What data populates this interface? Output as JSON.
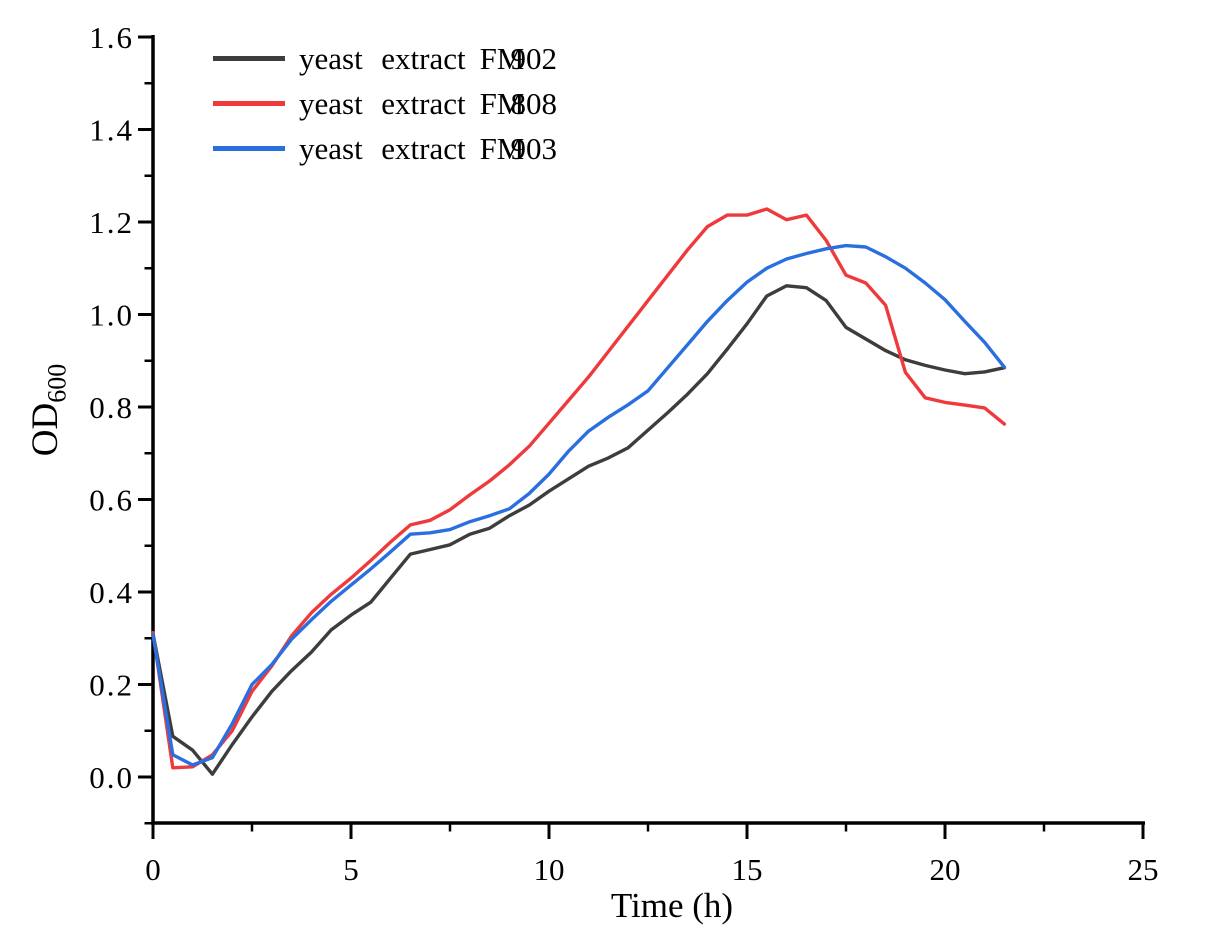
{
  "page": {
    "background": "#ffffff",
    "axis_color": "#000000",
    "text_color": "#000000"
  },
  "chart_data": {
    "type": "line",
    "title": "",
    "xlabel": "Time (h)",
    "ylabel": "OD",
    "ylabel_subscript": "600",
    "xlim": [
      0,
      25
    ],
    "ylim": [
      0,
      1.6
    ],
    "grid": false,
    "legend_position": "top-left-inside",
    "x_tick_labels": [
      "0",
      "5",
      "10",
      "15",
      "20",
      "25"
    ],
    "x_tick_values": [
      0,
      5,
      10,
      15,
      20,
      25
    ],
    "x_minor_ticks": [
      2.5,
      7.5,
      12.5,
      17.5,
      22.5
    ],
    "y_tick_labels": [
      "0.0",
      "0.2",
      "0.4",
      "0.6",
      "0.8",
      "1.0",
      "1.2",
      "1.4",
      "1.6"
    ],
    "y_tick_values": [
      0.0,
      0.2,
      0.4,
      0.6,
      0.8,
      1.0,
      1.2,
      1.4,
      1.6
    ],
    "y_minor_ticks": [
      -0.1,
      0.1,
      0.3,
      0.5,
      0.7,
      0.9,
      1.1,
      1.3,
      1.5
    ],
    "x": [
      0,
      0.5,
      1,
      1.5,
      2,
      2.5,
      3,
      3.5,
      4,
      4.5,
      5,
      5.5,
      6,
      6.5,
      7,
      7.5,
      8,
      8.5,
      9,
      9.5,
      10,
      10.5,
      11,
      11.5,
      12,
      12.5,
      13,
      13.5,
      14,
      14.5,
      15,
      15.5,
      16,
      16.5,
      17,
      17.5,
      18,
      18.5,
      19,
      19.5,
      20,
      20.5,
      21,
      21.5
    ],
    "series": [
      {
        "name": "yeast extract FM902",
        "label_text": "yeast extract",
        "code": "FM902",
        "color": "#3d3d3d",
        "values": [
          0.31,
          0.088,
          0.058,
          0.006,
          0.07,
          0.13,
          0.185,
          0.23,
          0.27,
          0.318,
          0.35,
          0.378,
          0.43,
          0.482,
          0.492,
          0.502,
          0.525,
          0.538,
          0.565,
          0.588,
          0.618,
          0.645,
          0.672,
          0.69,
          0.712,
          0.75,
          0.788,
          0.828,
          0.872,
          0.925,
          0.98,
          1.04,
          1.062,
          1.058,
          1.03,
          0.972,
          0.947,
          0.922,
          0.902,
          0.89,
          0.88,
          0.872,
          0.876,
          0.885
        ]
      },
      {
        "name": "yeast extract FM808",
        "label_text": "yeast extract",
        "code": "FM808",
        "color": "#ef3a3c",
        "values": [
          0.312,
          0.02,
          0.022,
          0.048,
          0.1,
          0.185,
          0.24,
          0.305,
          0.355,
          0.395,
          0.43,
          0.468,
          0.508,
          0.545,
          0.555,
          0.578,
          0.61,
          0.64,
          0.675,
          0.715,
          0.765,
          0.815,
          0.865,
          0.92,
          0.975,
          1.03,
          1.085,
          1.14,
          1.19,
          1.215,
          1.215,
          1.228,
          1.205,
          1.215,
          1.16,
          1.085,
          1.068,
          1.02,
          0.875,
          0.82,
          0.81,
          0.804,
          0.798,
          0.763
        ]
      },
      {
        "name": "yeast extract FM903",
        "label_text": "yeast extract",
        "code": "FM903",
        "color": "#2a6fdf",
        "values": [
          0.308,
          0.048,
          0.026,
          0.042,
          0.115,
          0.2,
          0.243,
          0.298,
          0.34,
          0.38,
          0.415,
          0.45,
          0.487,
          0.525,
          0.528,
          0.535,
          0.552,
          0.565,
          0.58,
          0.613,
          0.655,
          0.705,
          0.748,
          0.778,
          0.805,
          0.835,
          0.885,
          0.935,
          0.985,
          1.03,
          1.07,
          1.1,
          1.12,
          1.132,
          1.142,
          1.149,
          1.146,
          1.125,
          1.1,
          1.068,
          1.032,
          0.985,
          0.94,
          0.886
        ]
      }
    ]
  }
}
